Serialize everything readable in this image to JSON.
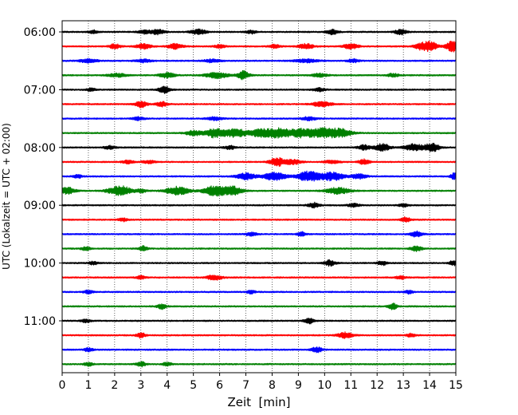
{
  "chart_data": {
    "type": "line",
    "title": "",
    "xlabel": "Zeit  [min]",
    "ylabel": "UTC (Lokalzeit = UTC + 02:00)",
    "xlim": [
      0,
      15
    ],
    "x_ticks": [
      0,
      1,
      2,
      3,
      4,
      5,
      6,
      7,
      8,
      9,
      10,
      11,
      12,
      13,
      14,
      15
    ],
    "x_tick_labels": [
      "0",
      "1",
      "2",
      "3",
      "4",
      "5",
      "6",
      "7",
      "8",
      "9",
      "10",
      "11",
      "12",
      "13",
      "14",
      "15"
    ],
    "vertical_grid": true,
    "grid_style": "dotted",
    "y_tick_labels": [
      "06:00",
      "07:00",
      "08:00",
      "09:00",
      "10:00",
      "11:00"
    ],
    "y_tick_row_index": [
      0,
      4,
      8,
      12,
      16,
      20
    ],
    "trace_colors": [
      "#000000",
      "#ff0000",
      "#0000ff",
      "#008000"
    ],
    "trace_count": 24,
    "legend": "none",
    "traces": [
      {
        "color": "#000000",
        "bursts": [
          [
            1.2,
            0.12,
            2.0
          ],
          [
            3.1,
            0.15,
            2.0
          ],
          [
            3.6,
            0.2,
            3.0
          ],
          [
            5.2,
            0.2,
            3.0
          ],
          [
            7.2,
            0.12,
            2.0
          ],
          [
            10.3,
            0.15,
            3.0
          ],
          [
            12.9,
            0.15,
            3.0
          ]
        ]
      },
      {
        "color": "#ff0000",
        "bursts": [
          [
            2.0,
            0.15,
            3.0
          ],
          [
            3.1,
            0.2,
            3.0
          ],
          [
            4.3,
            0.2,
            3.0
          ],
          [
            6.0,
            0.15,
            2.0
          ],
          [
            8.1,
            0.15,
            2.0
          ],
          [
            9.3,
            0.2,
            3.0
          ],
          [
            11.0,
            0.2,
            3.0
          ],
          [
            13.6,
            0.15,
            3.0
          ],
          [
            14.0,
            0.2,
            6.0
          ],
          [
            14.85,
            0.15,
            7.0
          ]
        ]
      },
      {
        "color": "#0000ff",
        "bursts": [
          [
            1.0,
            0.25,
            2.0
          ],
          [
            3.1,
            0.2,
            2.0
          ],
          [
            5.7,
            0.2,
            2.0
          ],
          [
            9.3,
            0.3,
            2.0
          ],
          [
            11.1,
            0.15,
            2.0
          ]
        ]
      },
      {
        "color": "#008000",
        "bursts": [
          [
            2.1,
            0.25,
            2.0
          ],
          [
            4.0,
            0.2,
            3.0
          ],
          [
            5.9,
            0.3,
            3.5
          ],
          [
            6.9,
            0.15,
            5.0
          ],
          [
            9.8,
            0.2,
            2.0
          ],
          [
            12.6,
            0.15,
            2.0
          ]
        ]
      },
      {
        "color": "#000000",
        "bursts": [
          [
            1.1,
            0.12,
            2.0
          ],
          [
            3.9,
            0.15,
            4.0
          ],
          [
            9.8,
            0.15,
            2.0
          ]
        ]
      },
      {
        "color": "#ff0000",
        "bursts": [
          [
            3.0,
            0.15,
            4.0
          ],
          [
            3.8,
            0.15,
            3.0
          ],
          [
            9.9,
            0.25,
            3.0
          ]
        ]
      },
      {
        "color": "#0000ff",
        "bursts": [
          [
            2.9,
            0.15,
            2.0
          ],
          [
            5.8,
            0.2,
            2.0
          ],
          [
            9.4,
            0.2,
            2.0
          ]
        ]
      },
      {
        "color": "#008000",
        "bursts": [
          [
            5.0,
            0.2,
            3.0
          ],
          [
            5.8,
            0.25,
            5.5
          ],
          [
            6.6,
            0.3,
            5.0
          ],
          [
            7.6,
            0.3,
            5.0
          ],
          [
            8.3,
            0.25,
            6.0
          ],
          [
            9.1,
            0.3,
            5.5
          ],
          [
            9.9,
            0.3,
            5.5
          ],
          [
            10.6,
            0.3,
            5.0
          ]
        ]
      },
      {
        "color": "#000000",
        "bursts": [
          [
            1.8,
            0.15,
            2.0
          ],
          [
            6.4,
            0.15,
            2.0
          ],
          [
            11.5,
            0.15,
            3.0
          ],
          [
            12.2,
            0.2,
            4.5
          ],
          [
            13.4,
            0.25,
            4.0
          ],
          [
            14.1,
            0.2,
            5.0
          ]
        ]
      },
      {
        "color": "#ff0000",
        "bursts": [
          [
            2.5,
            0.15,
            2.0
          ],
          [
            3.3,
            0.15,
            2.0
          ],
          [
            8.2,
            0.2,
            5.0
          ],
          [
            8.8,
            0.2,
            3.0
          ],
          [
            10.3,
            0.2,
            2.0
          ],
          [
            11.5,
            0.15,
            3.0
          ]
        ]
      },
      {
        "color": "#0000ff",
        "bursts": [
          [
            0.6,
            0.12,
            2.0
          ],
          [
            7.0,
            0.25,
            4.0
          ],
          [
            8.1,
            0.3,
            5.0
          ],
          [
            9.4,
            0.3,
            6.0
          ],
          [
            10.3,
            0.3,
            5.0
          ],
          [
            11.3,
            0.2,
            3.0
          ],
          [
            14.95,
            0.1,
            4.0
          ]
        ]
      },
      {
        "color": "#008000",
        "bursts": [
          [
            0.2,
            0.2,
            4.0
          ],
          [
            2.2,
            0.3,
            6.0
          ],
          [
            3.0,
            0.15,
            2.0
          ],
          [
            4.4,
            0.3,
            5.0
          ],
          [
            5.8,
            0.3,
            6.0
          ],
          [
            6.5,
            0.25,
            5.0
          ],
          [
            10.5,
            0.3,
            4.0
          ]
        ]
      },
      {
        "color": "#000000",
        "bursts": [
          [
            9.6,
            0.15,
            3.0
          ],
          [
            11.1,
            0.15,
            2.0
          ],
          [
            13.0,
            0.12,
            2.0
          ]
        ]
      },
      {
        "color": "#ff0000",
        "bursts": [
          [
            2.3,
            0.12,
            2.0
          ],
          [
            13.1,
            0.12,
            3.0
          ]
        ]
      },
      {
        "color": "#0000ff",
        "bursts": [
          [
            7.2,
            0.15,
            2.0
          ],
          [
            9.1,
            0.1,
            3.0
          ],
          [
            13.5,
            0.15,
            3.5
          ]
        ]
      },
      {
        "color": "#008000",
        "bursts": [
          [
            0.9,
            0.12,
            2.0
          ],
          [
            3.1,
            0.12,
            3.0
          ],
          [
            13.5,
            0.15,
            3.0
          ]
        ]
      },
      {
        "color": "#000000",
        "bursts": [
          [
            1.2,
            0.12,
            2.0
          ],
          [
            10.2,
            0.15,
            3.5
          ],
          [
            12.2,
            0.12,
            2.5
          ],
          [
            14.9,
            0.1,
            3.0
          ]
        ]
      },
      {
        "color": "#ff0000",
        "bursts": [
          [
            3.0,
            0.12,
            2.0
          ],
          [
            5.8,
            0.2,
            3.0
          ],
          [
            12.9,
            0.12,
            2.0
          ]
        ]
      },
      {
        "color": "#0000ff",
        "bursts": [
          [
            1.0,
            0.12,
            2.0
          ],
          [
            7.2,
            0.12,
            2.0
          ],
          [
            13.2,
            0.12,
            2.0
          ]
        ]
      },
      {
        "color": "#008000",
        "bursts": [
          [
            3.8,
            0.12,
            3.0
          ],
          [
            12.6,
            0.12,
            3.5
          ]
        ]
      },
      {
        "color": "#000000",
        "bursts": [
          [
            0.9,
            0.12,
            2.0
          ],
          [
            9.4,
            0.12,
            3.5
          ]
        ]
      },
      {
        "color": "#ff0000",
        "bursts": [
          [
            3.0,
            0.12,
            3.0
          ],
          [
            10.8,
            0.2,
            3.5
          ],
          [
            13.3,
            0.12,
            2.0
          ]
        ]
      },
      {
        "color": "#0000ff",
        "bursts": [
          [
            1.0,
            0.12,
            2.0
          ],
          [
            9.7,
            0.15,
            3.0
          ]
        ]
      },
      {
        "color": "#008000",
        "bursts": [
          [
            1.0,
            0.12,
            2.0
          ],
          [
            3.0,
            0.12,
            3.0
          ],
          [
            4.0,
            0.12,
            2.0
          ]
        ]
      }
    ]
  }
}
